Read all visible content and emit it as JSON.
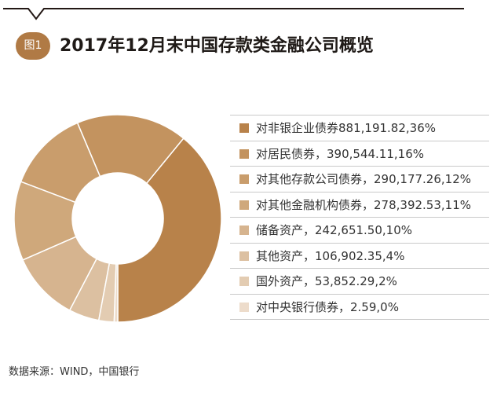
{
  "title": {
    "badge": "图1",
    "text": "2017年12月末中国存款类金融公司概览"
  },
  "chart_data": {
    "type": "pie",
    "subtype": "donut",
    "title": "2017年12月末中国存款类金融公司概览",
    "start": "bottom, counter-clockwise",
    "categories": [
      "对非银企业债券",
      "对居民债券",
      "对其他存款公司债券",
      "对其他金融机构债券",
      "储备资产",
      "其他资产",
      "国外资产",
      "对中央银行债券"
    ],
    "values": [
      881191.82,
      390544.11,
      290177.26,
      278392.53,
      242651.5,
      106902.35,
      53852.29,
      2.59
    ],
    "percents": [
      36,
      16,
      12,
      11,
      10,
      4,
      2,
      0
    ],
    "colors": [
      "#b8824a",
      "#c3935f",
      "#c99d6c",
      "#cfa87b",
      "#d6b48f",
      "#dcc0a1",
      "#e3ccb2",
      "#eddccb"
    ],
    "labels": [
      "对非银企业债券881,191.82,36%",
      "对居民债券，390,544.11,16%",
      "对其他存款公司债券，290,177.26,12%",
      "对其他金融机构债券，278,392.53,11%",
      "储备资产，242,651.50,10%",
      "其他资产，106,902.35,4%",
      "国外资产，53,852.29,2%",
      "对中央银行债券，2.59,0%"
    ],
    "legend": "right"
  },
  "source": "数据来源：WIND，中国银行",
  "style": {
    "accent": "#b07a45",
    "rule": "#231815",
    "separator": "#ffffff"
  }
}
